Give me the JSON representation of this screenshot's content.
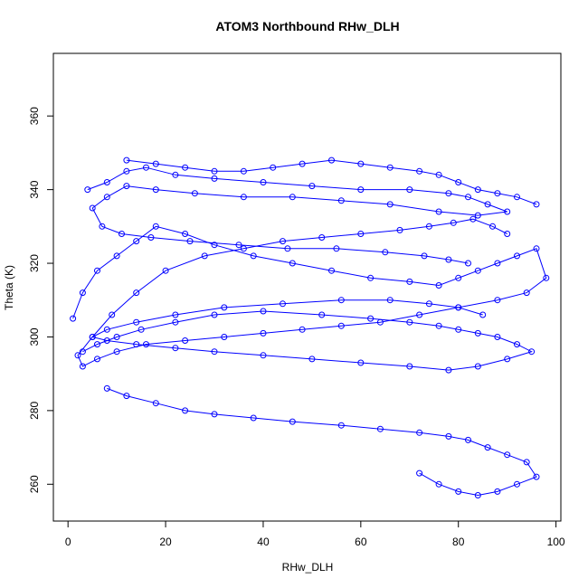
{
  "chart_data": {
    "type": "line",
    "title": "ATOM3 Northbound RHw_DLH",
    "xlabel": "RHw_DLH",
    "ylabel": "Theta (K)",
    "xlim": [
      -3,
      101
    ],
    "ylim": [
      250,
      377
    ],
    "x_ticks": [
      0,
      20,
      40,
      60,
      80,
      100
    ],
    "y_ticks": [
      260,
      280,
      300,
      320,
      340,
      360
    ],
    "grid": false,
    "legend": "none",
    "series_color": "#0000FF",
    "marker": "open-circle",
    "series": [
      {
        "x": [
          1,
          3,
          6,
          10,
          14,
          18,
          24,
          30,
          38,
          46,
          54,
          62,
          70,
          76,
          80,
          84,
          88,
          92,
          96,
          98,
          94,
          88,
          80,
          72,
          64,
          56,
          48,
          40,
          32,
          24,
          16,
          10,
          6,
          3,
          2,
          5,
          9,
          14,
          20,
          28,
          36,
          44,
          52,
          60,
          68,
          74,
          79,
          83,
          87,
          90
        ],
        "y": [
          305,
          312,
          318,
          322,
          326,
          330,
          328,
          325,
          322,
          320,
          318,
          316,
          315,
          314,
          316,
          318,
          320,
          322,
          324,
          316,
          312,
          310,
          308,
          306,
          304,
          303,
          302,
          301,
          300,
          299,
          298,
          296,
          294,
          292,
          295,
          300,
          306,
          312,
          318,
          322,
          324,
          326,
          327,
          328,
          329,
          330,
          331,
          332,
          330,
          328
        ]
      },
      {
        "x": [
          4,
          8,
          12,
          16,
          22,
          30,
          40,
          50,
          60,
          70,
          78,
          82,
          86,
          90,
          84,
          76,
          66,
          56,
          46,
          36,
          26,
          18,
          12,
          8,
          5,
          7,
          11,
          17,
          25,
          35,
          45,
          55,
          65,
          73,
          78,
          82
        ],
        "y": [
          340,
          342,
          345,
          346,
          344,
          343,
          342,
          341,
          340,
          340,
          339,
          338,
          336,
          334,
          333,
          334,
          336,
          337,
          338,
          338,
          339,
          340,
          341,
          338,
          335,
          330,
          328,
          327,
          326,
          325,
          324,
          324,
          323,
          322,
          321,
          320
        ]
      },
      {
        "x": [
          3,
          6,
          10,
          15,
          22,
          30,
          40,
          52,
          62,
          70,
          76,
          80,
          84,
          88,
          92,
          95,
          90,
          84,
          78,
          70,
          60,
          50,
          40,
          30,
          22,
          14,
          8,
          5,
          8,
          14,
          22,
          32,
          44,
          56,
          66,
          74,
          80,
          85
        ],
        "y": [
          296,
          298,
          300,
          302,
          304,
          306,
          307,
          306,
          305,
          304,
          303,
          302,
          301,
          300,
          298,
          296,
          294,
          292,
          291,
          292,
          293,
          294,
          295,
          296,
          297,
          298,
          299,
          300,
          302,
          304,
          306,
          308,
          309,
          310,
          310,
          309,
          308,
          306
        ]
      },
      {
        "x": [
          8,
          12,
          18,
          24,
          30,
          38,
          46,
          56,
          64,
          72,
          78,
          82,
          86,
          90,
          94,
          96,
          92,
          88,
          84,
          80,
          76,
          72
        ],
        "y": [
          286,
          284,
          282,
          280,
          279,
          278,
          277,
          276,
          275,
          274,
          273,
          272,
          270,
          268,
          266,
          262,
          260,
          258,
          257,
          258,
          260,
          263
        ]
      },
      {
        "x": [
          12,
          18,
          24,
          30,
          36,
          42,
          48,
          54,
          60,
          66,
          72,
          76,
          80,
          84,
          88,
          92,
          96
        ],
        "y": [
          348,
          347,
          346,
          345,
          345,
          346,
          347,
          348,
          347,
          346,
          345,
          344,
          342,
          340,
          339,
          338,
          336
        ]
      }
    ]
  }
}
